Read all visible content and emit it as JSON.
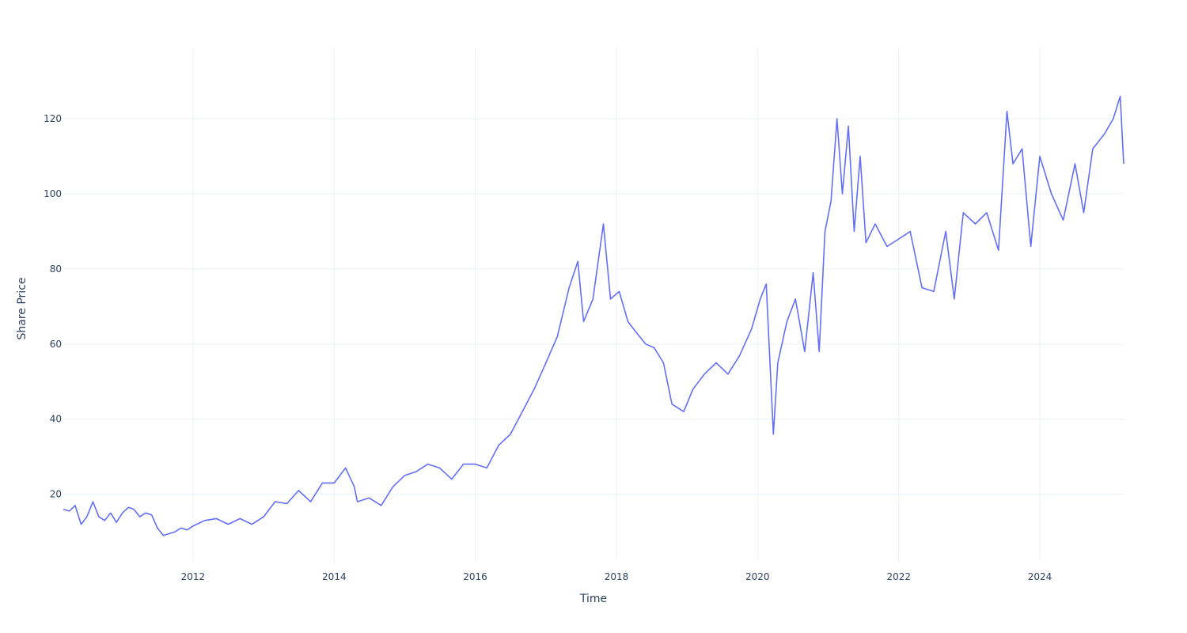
{
  "chart_data": {
    "type": "line",
    "title": "",
    "xlabel": "Time",
    "ylabel": "Share Price",
    "x_ticks": [
      "2012",
      "2014",
      "2016",
      "2018",
      "2020",
      "2022",
      "2024"
    ],
    "y_ticks": [
      20,
      40,
      60,
      80,
      100,
      120
    ],
    "xlim": [
      "2010-03-01",
      "2025-03-10"
    ],
    "ylim": [
      2,
      139
    ],
    "grid": true,
    "legend": "none",
    "series": [
      {
        "color": "#636efa",
        "x": [
          "2010-03-01",
          "2010-04-01",
          "2010-05-01",
          "2010-06-01",
          "2010-07-01",
          "2010-08-01",
          "2010-09-01",
          "2010-10-01",
          "2010-11-01",
          "2010-12-01",
          "2011-01-01",
          "2011-02-01",
          "2011-03-01",
          "2011-04-01",
          "2011-05-01",
          "2011-06-01",
          "2011-07-01",
          "2011-08-01",
          "2011-09-01",
          "2011-10-01",
          "2011-11-01",
          "2011-12-01",
          "2012-01-01",
          "2012-03-01",
          "2012-05-01",
          "2012-07-01",
          "2012-09-01",
          "2012-11-01",
          "2013-01-01",
          "2013-03-01",
          "2013-05-01",
          "2013-07-01",
          "2013-09-01",
          "2013-11-01",
          "2014-01-01",
          "2014-03-01",
          "2014-04-15",
          "2014-05-01",
          "2014-07-01",
          "2014-09-01",
          "2014-11-01",
          "2015-01-01",
          "2015-03-01",
          "2015-05-01",
          "2015-07-01",
          "2015-09-01",
          "2015-11-01",
          "2016-01-01",
          "2016-03-01",
          "2016-05-01",
          "2016-07-01",
          "2016-09-01",
          "2016-11-01",
          "2017-01-01",
          "2017-03-01",
          "2017-05-01",
          "2017-06-15",
          "2017-07-15",
          "2017-09-01",
          "2017-10-25",
          "2017-12-01",
          "2018-01-15",
          "2018-03-01",
          "2018-04-15",
          "2018-06-01",
          "2018-07-15",
          "2018-09-01",
          "2018-10-15",
          "2018-12-15",
          "2019-02-01",
          "2019-04-01",
          "2019-06-01",
          "2019-08-01",
          "2019-10-01",
          "2019-12-01",
          "2020-01-15",
          "2020-02-15",
          "2020-03-23",
          "2020-04-15",
          "2020-06-01",
          "2020-07-15",
          "2020-09-01",
          "2020-10-15",
          "2020-11-15",
          "2020-12-15",
          "2021-01-15",
          "2021-02-15",
          "2021-03-15",
          "2021-04-15",
          "2021-05-15",
          "2021-06-15",
          "2021-07-15",
          "2021-09-01",
          "2021-11-01",
          "2022-01-01",
          "2022-03-01",
          "2022-05-01",
          "2022-07-01",
          "2022-09-01",
          "2022-10-15",
          "2022-12-01",
          "2023-02-01",
          "2023-04-01",
          "2023-06-01",
          "2023-07-15",
          "2023-08-15",
          "2023-10-01",
          "2023-11-15",
          "2024-01-01",
          "2024-03-01",
          "2024-05-01",
          "2024-07-01",
          "2024-08-15",
          "2024-10-01",
          "2024-12-01",
          "2025-01-15",
          "2025-02-20",
          "2025-03-10"
        ],
        "y": [
          16,
          15.5,
          17,
          12,
          14,
          18,
          14,
          13,
          15,
          12.5,
          15,
          16.5,
          16,
          14,
          15,
          14.5,
          11,
          9,
          9.5,
          10,
          11,
          10.5,
          11.5,
          13,
          13.5,
          12,
          13.5,
          12,
          14,
          18,
          17.5,
          21,
          18,
          23,
          23,
          27,
          22,
          18,
          19,
          17,
          22,
          25,
          26,
          28,
          27,
          24,
          28,
          28,
          27,
          33,
          36,
          42,
          48,
          55,
          62,
          75,
          82,
          66,
          72,
          92,
          72,
          74,
          66,
          63,
          60,
          59,
          55,
          44,
          42,
          48,
          52,
          55,
          52,
          57,
          64,
          72,
          76,
          36,
          55,
          66,
          72,
          58,
          79,
          58,
          90,
          98,
          120,
          100,
          118,
          90,
          110,
          87,
          92,
          86,
          88,
          90,
          75,
          74,
          90,
          72,
          95,
          92,
          95,
          85,
          122,
          108,
          112,
          86,
          110,
          100,
          93,
          108,
          95,
          112,
          116,
          120,
          126,
          108
        ]
      }
    ]
  }
}
